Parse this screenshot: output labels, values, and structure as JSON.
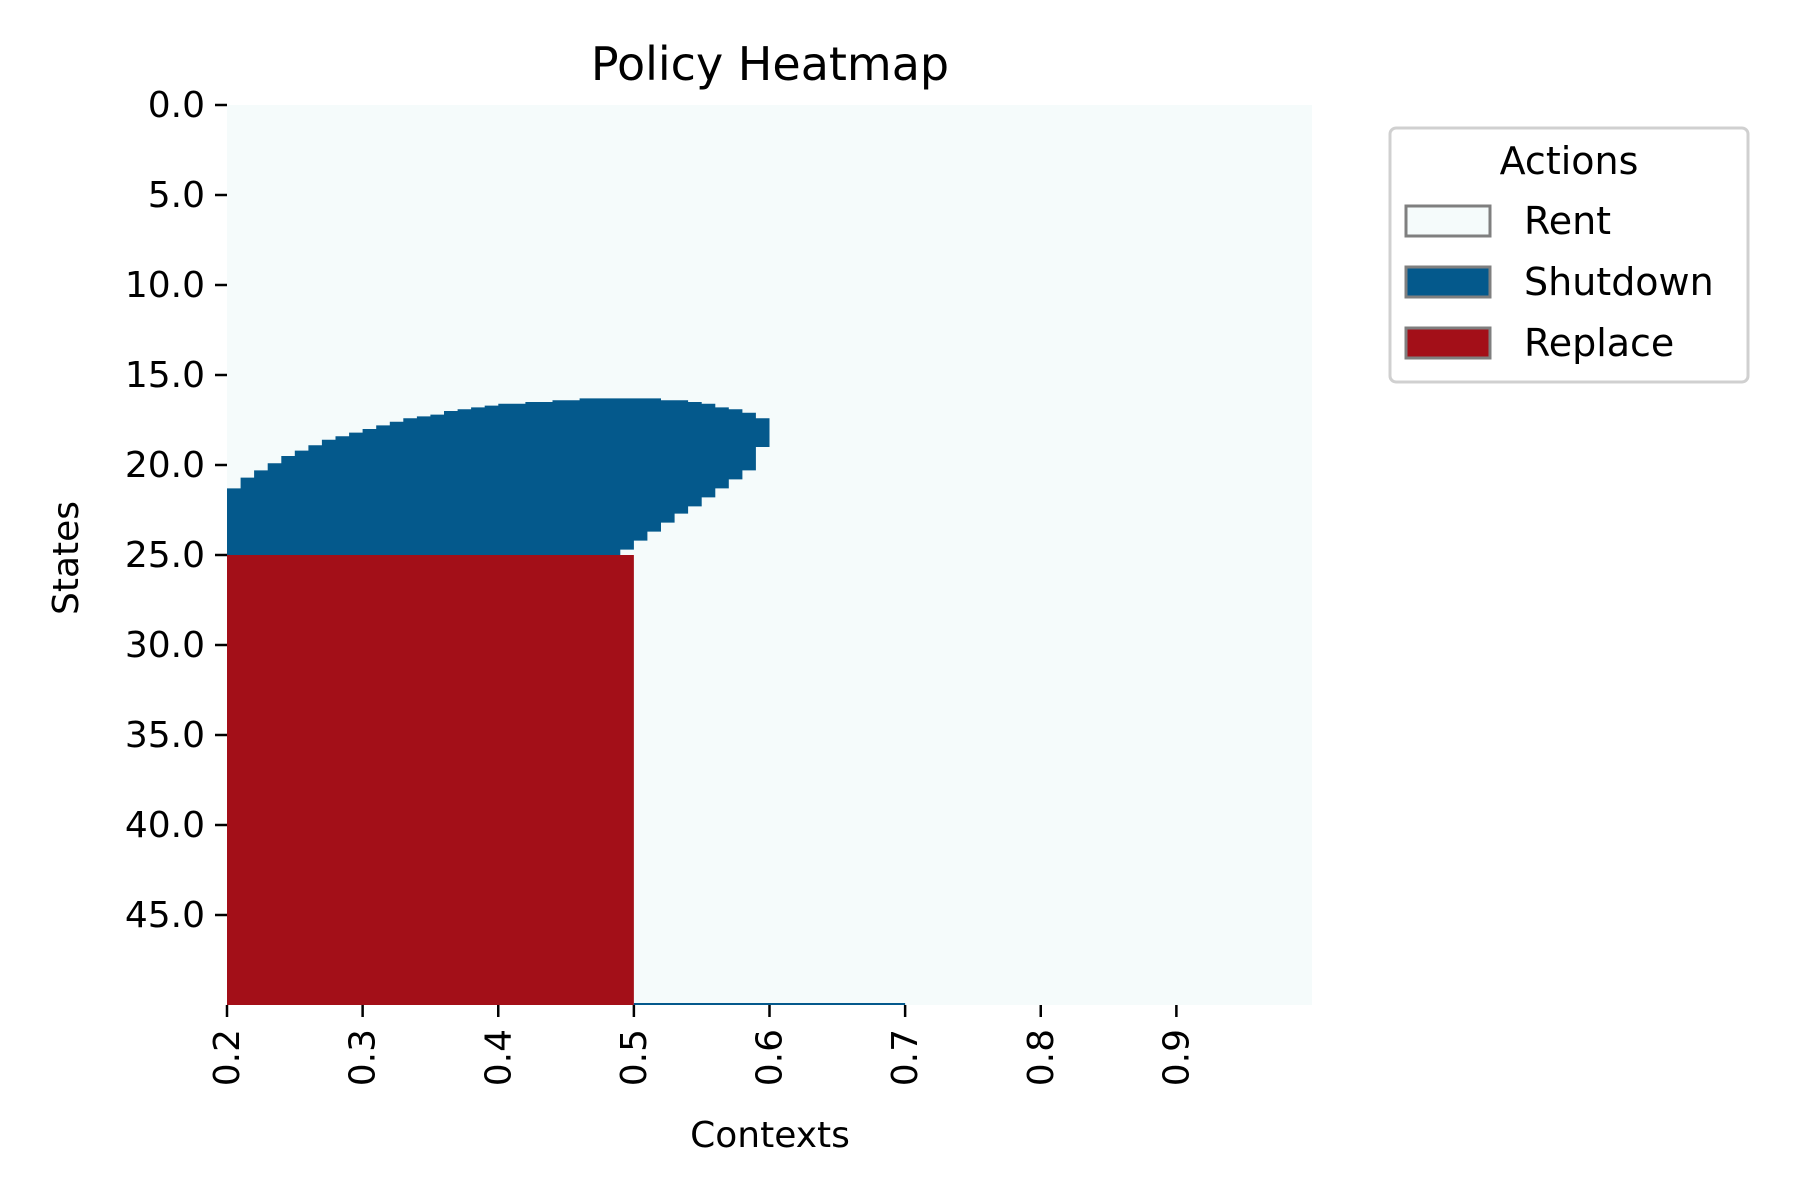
{
  "chart_data": {
    "type": "heatmap",
    "title": "Policy Heatmap",
    "xlabel": "Contexts",
    "ylabel": "States",
    "x_range": [
      0.2,
      1.0
    ],
    "y_range": [
      0.0,
      50.0
    ],
    "y_axis_inverted": true,
    "x_ticks": [
      "0.2",
      "0.3",
      "0.4",
      "0.5",
      "0.6",
      "0.7",
      "0.8",
      "0.9"
    ],
    "x_tick_values": [
      0.2,
      0.3,
      0.4,
      0.5,
      0.6,
      0.7,
      0.8,
      0.9
    ],
    "y_ticks": [
      "0.0",
      "5.0",
      "10.0",
      "15.0",
      "20.0",
      "25.0",
      "30.0",
      "35.0",
      "40.0",
      "45.0"
    ],
    "y_tick_values": [
      0,
      5,
      10,
      15,
      20,
      25,
      30,
      35,
      40,
      45
    ],
    "legend": {
      "title": "Actions",
      "placement": "outside-right-top",
      "entries": [
        {
          "label": "Rent",
          "color": "#f5fbfb"
        },
        {
          "label": "Shutdown",
          "color": "#04598c"
        },
        {
          "label": "Replace",
          "color": "#a30f18"
        }
      ]
    },
    "default_action": "Rent",
    "regions": [
      {
        "action": "Shutdown",
        "description_boundary": "upper edge by context (state where Shutdown begins); lower edge at state 25.0 up to context 0.49, then receding",
        "upper_boundary": [
          [
            0.2,
            21.3
          ],
          [
            0.21,
            20.7
          ],
          [
            0.22,
            20.3
          ],
          [
            0.23,
            19.9
          ],
          [
            0.24,
            19.5
          ],
          [
            0.25,
            19.2
          ],
          [
            0.26,
            18.9
          ],
          [
            0.27,
            18.6
          ],
          [
            0.28,
            18.4
          ],
          [
            0.29,
            18.2
          ],
          [
            0.3,
            18.0
          ],
          [
            0.31,
            17.8
          ],
          [
            0.32,
            17.6
          ],
          [
            0.33,
            17.4
          ],
          [
            0.34,
            17.3
          ],
          [
            0.35,
            17.2
          ],
          [
            0.36,
            17.0
          ],
          [
            0.37,
            16.9
          ],
          [
            0.38,
            16.8
          ],
          [
            0.39,
            16.7
          ],
          [
            0.4,
            16.6
          ],
          [
            0.41,
            16.6
          ],
          [
            0.42,
            16.5
          ],
          [
            0.43,
            16.5
          ],
          [
            0.44,
            16.4
          ],
          [
            0.45,
            16.4
          ],
          [
            0.46,
            16.3
          ],
          [
            0.47,
            16.3
          ],
          [
            0.48,
            16.3
          ],
          [
            0.49,
            16.3
          ],
          [
            0.5,
            16.3
          ],
          [
            0.51,
            16.3
          ],
          [
            0.52,
            16.4
          ],
          [
            0.53,
            16.4
          ],
          [
            0.54,
            16.5
          ],
          [
            0.55,
            16.6
          ],
          [
            0.56,
            16.8
          ],
          [
            0.57,
            16.9
          ],
          [
            0.58,
            17.1
          ],
          [
            0.59,
            17.4
          ],
          [
            0.6,
            17.4
          ]
        ],
        "lower_boundary": [
          [
            0.2,
            25.0
          ],
          [
            0.49,
            25.0
          ],
          [
            0.5,
            24.7
          ],
          [
            0.51,
            24.2
          ],
          [
            0.52,
            23.7
          ],
          [
            0.53,
            23.2
          ],
          [
            0.54,
            22.7
          ],
          [
            0.55,
            22.3
          ],
          [
            0.56,
            21.8
          ],
          [
            0.57,
            21.3
          ],
          [
            0.58,
            20.8
          ],
          [
            0.59,
            20.3
          ],
          [
            0.6,
            19.0
          ],
          [
            0.605,
            17.4
          ]
        ]
      },
      {
        "action": "Replace",
        "contexts": [
          0.2,
          0.5
        ],
        "states_from": 25.0,
        "states_to": 50.0
      }
    ]
  }
}
